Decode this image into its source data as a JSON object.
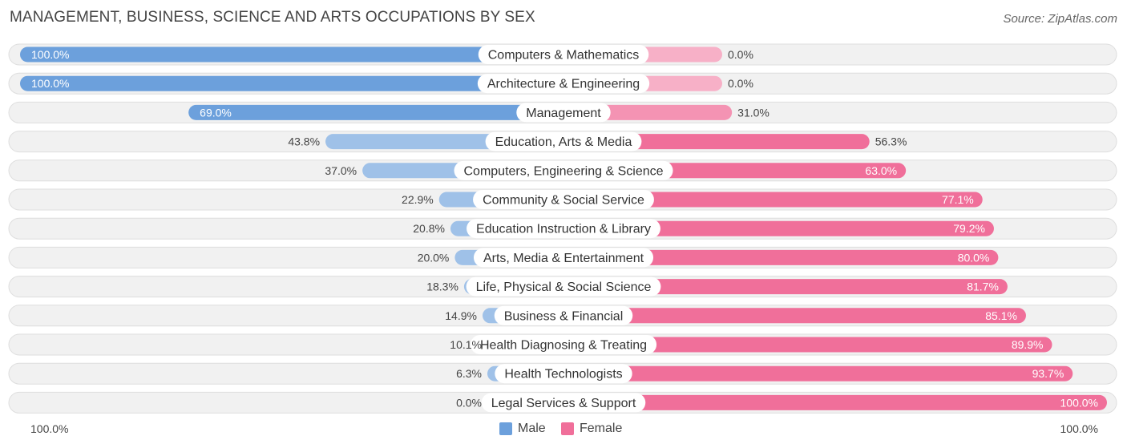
{
  "header": {
    "title": "MANAGEMENT, BUSINESS, SCIENCE AND ARTS OCCUPATIONS BY SEX",
    "source": "Source: ZipAtlas.com"
  },
  "axis": {
    "left_label": "100.0%",
    "right_label": "100.0%"
  },
  "legend": {
    "male_label": "Male",
    "female_label": "Female",
    "male_color": "#6ca0dc",
    "female_color": "#f06f9a"
  },
  "chart_data": {
    "type": "bar",
    "orientation": "diverging-horizontal",
    "categories": [
      "Computers & Mathematics",
      "Architecture & Engineering",
      "Management",
      "Education, Arts & Media",
      "Computers, Engineering & Science",
      "Community & Social Service",
      "Education Instruction & Library",
      "Arts, Media & Entertainment",
      "Life, Physical & Social Science",
      "Business & Financial",
      "Health Diagnosing & Treating",
      "Health Technologists",
      "Legal Services & Support"
    ],
    "series": [
      {
        "name": "Male",
        "values": [
          100.0,
          100.0,
          69.0,
          43.8,
          37.0,
          22.9,
          20.8,
          20.0,
          18.3,
          14.9,
          10.1,
          6.3,
          0.0
        ],
        "labels": [
          "100.0%",
          "100.0%",
          "69.0%",
          "43.8%",
          "37.0%",
          "22.9%",
          "20.8%",
          "20.0%",
          "18.3%",
          "14.9%",
          "10.1%",
          "6.3%",
          "0.0%"
        ]
      },
      {
        "name": "Female",
        "values": [
          0.0,
          0.0,
          31.0,
          56.3,
          63.0,
          77.1,
          79.2,
          80.0,
          81.7,
          85.1,
          89.9,
          93.7,
          100.0
        ],
        "labels": [
          "0.0%",
          "0.0%",
          "31.0%",
          "56.3%",
          "63.0%",
          "77.1%",
          "79.2%",
          "80.0%",
          "81.7%",
          "85.1%",
          "89.9%",
          "93.7%",
          "100.0%"
        ]
      }
    ],
    "xlim": [
      0,
      100
    ],
    "unit": "%",
    "legend_position": "bottom-center"
  }
}
